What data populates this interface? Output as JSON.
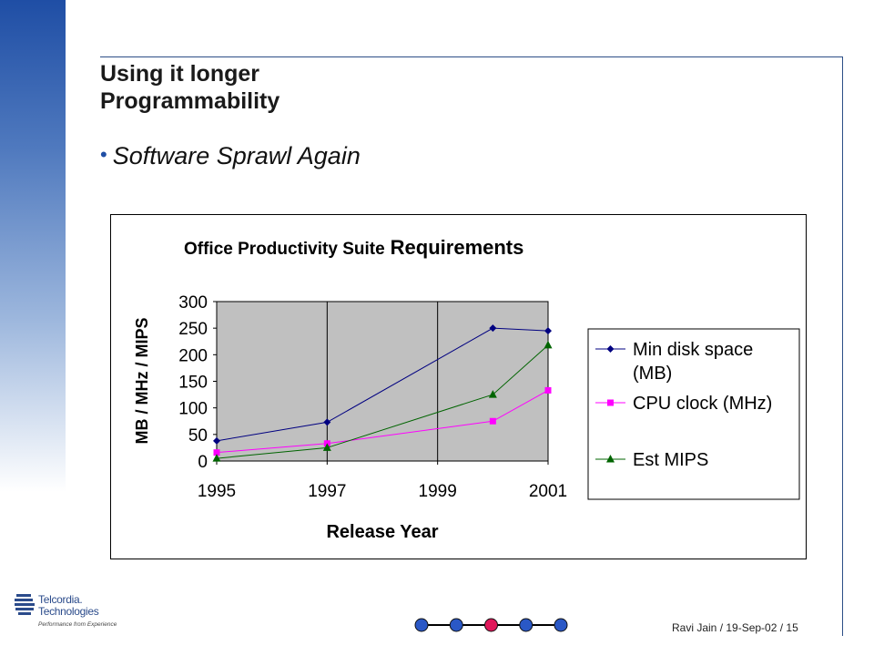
{
  "slide": {
    "title_line1": "Using it longer",
    "title_line2": "Programmability",
    "bullet": "Software Sprawl Again",
    "footer": "Ravi Jain / 19-Sep-02 / 15",
    "logo": {
      "name_line1": "Telcordia.",
      "name_line2": "Technologies",
      "tagline": "Performance from Experience"
    },
    "nav_dots": [
      "#2a58c6",
      "#2a58c6",
      "#e0185a",
      "#2a58c6",
      "#2a58c6"
    ]
  },
  "chart_data": {
    "type": "line",
    "title_part1": "Office Productivity Suite",
    "title_part2": "Requirements",
    "xlabel": "Release Year",
    "ylabel": "MB / MHz / MIPS",
    "x_ticks": [
      "1995",
      "1997",
      "1999",
      "2001"
    ],
    "y_ticks": [
      "300",
      "250",
      "200",
      "150",
      "100",
      "50",
      "0"
    ],
    "xlim": [
      1995,
      2001
    ],
    "ylim": [
      0,
      300
    ],
    "grid": true,
    "legend_position": "right",
    "series": [
      {
        "name_line1": "Min disk space",
        "name_line2": "(MB)",
        "color": "#000080",
        "marker": "diamond",
        "x": [
          1995,
          1997,
          2000,
          2001
        ],
        "y": [
          38,
          73,
          250,
          245
        ]
      },
      {
        "name_line1": "CPU clock (MHz)",
        "name_line2": "",
        "color": "#ff00ff",
        "marker": "square",
        "x": [
          1995,
          1997,
          2000,
          2001
        ],
        "y": [
          16,
          33,
          75,
          133
        ]
      },
      {
        "name_line1": "Est MIPS",
        "name_line2": "",
        "color": "#006400",
        "marker": "triangle",
        "x": [
          1995,
          1997,
          2000,
          2001
        ],
        "y": [
          5,
          25,
          125,
          218
        ]
      }
    ]
  }
}
